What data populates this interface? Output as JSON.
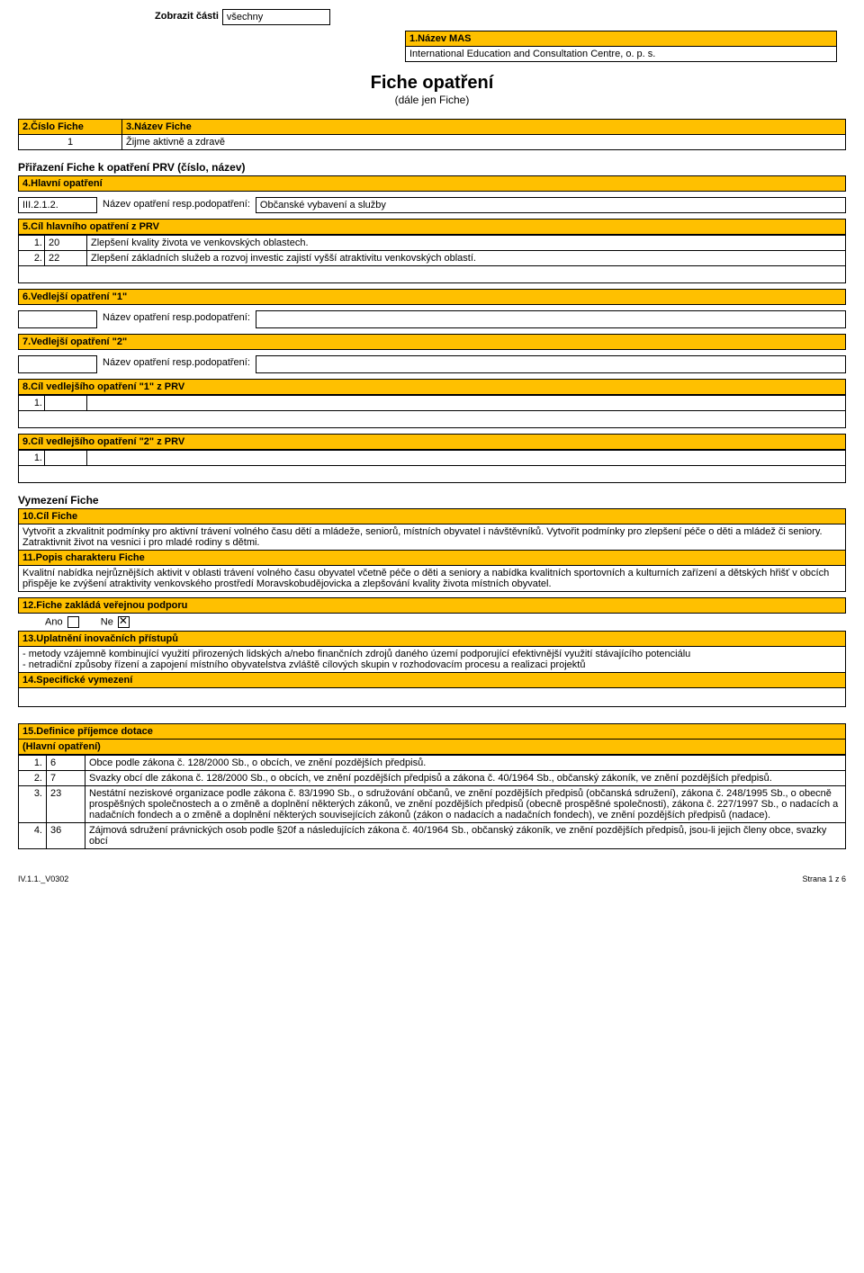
{
  "top": {
    "display_label": "Zobrazit části",
    "display_value": "všechny"
  },
  "s1": {
    "header": "1.Název MAS",
    "value": "International Education and Consultation Centre, o. p. s."
  },
  "page_title": "Fiche opatření",
  "page_sub": "(dále jen Fiche)",
  "s2": {
    "header": "2.Číslo Fiche",
    "value": "1"
  },
  "s3": {
    "header": "3.Název Fiche",
    "value": "Žijme aktivně a zdravě"
  },
  "assign_title": "Přiřazení Fiche k opatření PRV (číslo, název)",
  "s4": {
    "header": "4.Hlavní opatření",
    "code": "III.2.1.2.",
    "name_label": "Název opatření resp.podopatření:",
    "name_value": "Občanské vybavení a služby"
  },
  "s5": {
    "header": "5.Cíl hlavního opatření z PRV",
    "rows": [
      {
        "n": "1.",
        "code": "20",
        "text": "Zlepšení kvality života ve venkovských oblastech."
      },
      {
        "n": "2.",
        "code": "22",
        "text": "Zlepšení základních služeb a rozvoj investic zajistí vyšší atraktivitu venkovských oblastí."
      }
    ]
  },
  "s6": {
    "header": "6.Vedlejší opatření \"1\"",
    "name_label": "Název opatření resp.podopatření:"
  },
  "s7": {
    "header": "7.Vedlejší opatření \"2\"",
    "name_label": "Název opatření resp.podopatření:"
  },
  "s8": {
    "header": "8.Cíl vedlejšího opatření \"1\" z PRV",
    "rows": [
      {
        "n": "1."
      }
    ]
  },
  "s9": {
    "header": "9.Cíl vedlejšího opatření \"2\" z PRV",
    "rows": [
      {
        "n": "1."
      }
    ]
  },
  "vymezeni_title": "Vymezení Fiche",
  "s10": {
    "header": "10.Cíl Fiche",
    "text": "Vytvořit a zkvalitnit podmínky pro aktivní trávení volného času dětí a mládeže, seniorů, místních obyvatel i návštěvníků. Vytvořit podmínky pro zlepšení péče o děti a mládež či seniory. Zatraktivnit život na vesnici i pro mladé rodiny s dětmi."
  },
  "s11": {
    "header": "11.Popis charakteru Fiche",
    "text": "Kvalitní nabídka nejrůznějších aktivit v oblasti trávení volného času obyvatel včetně péče o děti a seniory a nabídka kvalitních sportovních a kulturních zařízení  a dětských hřišť v obcích přispěje ke zvýšení atraktivity venkovského prostředí Moravskobudějovicka a zlepšování kvality života místních obyvatel."
  },
  "s12": {
    "header": "12.Fiche zakládá veřejnou podporu",
    "ano_label": "Ano",
    "ne_label": "Ne",
    "ano": false,
    "ne": true
  },
  "s13": {
    "header": "13.Uplatnění inovačních přístupů",
    "text": "- metody vzájemně kombinující využití přirozených lidských a/nebo finančních zdrojů daného území podporující efektivnější využití stávajícího potenciálu\n- netradiční způsoby řízení a zapojení místního obyvatelstva zvláště cílových skupin v rozhodovacím procesu a realizaci projektů"
  },
  "s14": {
    "header": "14.Specifické vymezení"
  },
  "s15": {
    "header": "15.Definice příjemce dotace",
    "sub": "(Hlavní opatření)",
    "rows": [
      {
        "n": "1.",
        "code": "6",
        "text": "Obce podle zákona č. 128/2000 Sb., o obcích, ve znění pozdějších předpisů."
      },
      {
        "n": "2.",
        "code": "7",
        "text": "Svazky obcí dle zákona č. 128/2000 Sb., o obcích, ve znění pozdějších předpisů a  zákona č. 40/1964 Sb., občanský zákoník, ve znění pozdějších předpisů."
      },
      {
        "n": "3.",
        "code": "23",
        "text": "Nestátní neziskové organizace podle zákona č. 83/1990 Sb., o sdružování občanů, ve znění pozdějších předpisů (občanská sdružení), zákona č. 248/1995 Sb., o obecně prospěšných společnostech a o změně a doplnění některých zákonů, ve znění pozdějších předpisů (obecně prospěšné společnosti), zákona č. 227/1997 Sb., o nadacích a nadačních fondech a o změně a doplnění některých souvisejících zákonů (zákon o nadacích a nadačních fondech), ve znění pozdějších předpisů (nadace)."
      },
      {
        "n": "4.",
        "code": "36",
        "text": "Zájmová sdružení právnických osob podle §20f a následujících zákona č. 40/1964 Sb., občanský  zákoník, ve znění pozdějších předpisů, jsou-li jejich členy obce, svazky obcí"
      }
    ]
  },
  "footer": {
    "left": "IV.1.1._V0302",
    "right": "Strana 1 z 6"
  }
}
